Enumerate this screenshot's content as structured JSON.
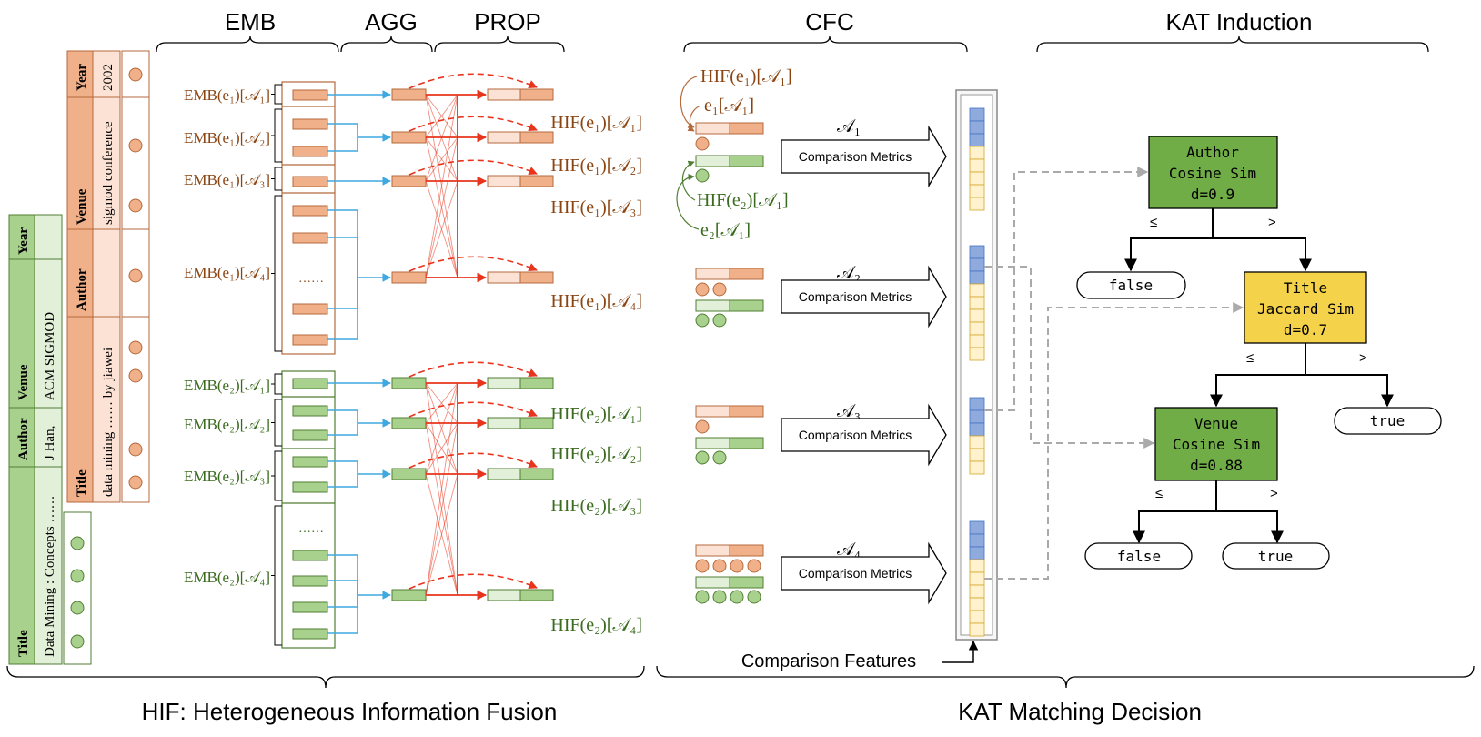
{
  "sections": {
    "emb": "EMB",
    "agg": "AGG",
    "prop": "PROP",
    "cfc": "CFC",
    "kat_induction": "KAT Induction"
  },
  "bottom": {
    "hif": "HIF: Heterogeneous Information Fusion",
    "kat": "KAT Matching Decision"
  },
  "tables": {
    "e1": {
      "headers": [
        "Year",
        "Venue",
        "Author",
        "Title"
      ],
      "values": [
        "2002",
        "sigmod conference",
        "",
        "data mining …… by jiawei"
      ]
    },
    "e2": {
      "headers": [
        "Year",
        "Venue",
        "Author",
        "Title"
      ],
      "values": [
        "",
        "ACM SIGMOD",
        "J Han,",
        "Data Mining : Concepts ……"
      ]
    }
  },
  "emb_labels": {
    "e1": [
      "EMB(e₁)[𝒜₁]",
      "EMB(e₁)[𝒜₂]",
      "EMB(e₁)[𝒜₃]",
      "EMB(e₁)[𝒜₄]"
    ],
    "e2": [
      "EMB(e₂)[𝒜₁]",
      "EMB(e₂)[𝒜₂]",
      "EMB(e₂)[𝒜₃]",
      "EMB(e₂)[𝒜₄]"
    ]
  },
  "hif_labels": {
    "e1": [
      "HIF(e₁)[𝒜₁]",
      "HIF(e₁)[𝒜₂]",
      "HIF(e₁)[𝒜₃]",
      "HIF(e₁)[𝒜₄]"
    ],
    "e2": [
      "HIF(e₂)[𝒜₁]",
      "HIF(e₂)[𝒜₂]",
      "HIF(e₂)[𝒜₃]",
      "HIF(e₂)[𝒜₄]"
    ]
  },
  "ellipsis": "……",
  "cfc": {
    "a1_labels": {
      "hif_e1": "HIF(e₁)[𝒜₁]",
      "e1": "e₁[𝒜₁]",
      "hif_e2": "HIF(e₂)[𝒜₁]",
      "e2": "e₂[𝒜₁]"
    },
    "attrs": [
      "𝒜₁",
      "𝒜₂",
      "𝒜₃",
      "𝒜₄"
    ],
    "metrics_label": "Comparison Metrics",
    "features_label": "Comparison Features"
  },
  "tree": {
    "author": [
      "Author",
      "Cosine Sim",
      "d=0.9"
    ],
    "title": [
      "Title",
      "Jaccard Sim",
      "d=0.7"
    ],
    "venue": [
      "Venue",
      "Cosine Sim",
      "d=0.88"
    ],
    "le": "≤",
    "gt": ">",
    "leaves": {
      "false1": "false",
      "true1": "true",
      "false2": "false",
      "true2": "true"
    }
  },
  "colors": {
    "orange_fill": "#efb08a",
    "orange_light": "#fbe2d5",
    "orange_stroke": "#b46a3c",
    "orange_text": "#8b4513",
    "green_fill": "#a9d18e",
    "green_light": "#e2f0d9",
    "green_stroke": "#507e32",
    "green_text": "#3a6b1e",
    "blue_line": "#3fa8e0",
    "red_line": "#e8341c",
    "blue_cell": "#8faadc",
    "yellow_cell": "#fff2cc",
    "node_green": "#70ad47",
    "node_yellow": "#f4d24a",
    "gray_dash": "#aaaaaa"
  }
}
